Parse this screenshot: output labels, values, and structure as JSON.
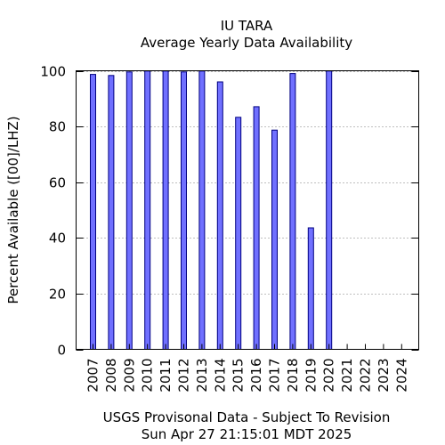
{
  "chart_data": {
    "type": "bar",
    "title": "IU TARA",
    "subtitle": "Average Yearly Data Availability",
    "ylabel": "Percent Available ([00]/LHZ)",
    "xlabel": "",
    "footer_line1": "USGS Provisonal Data - Subject To Revision",
    "footer_line2": "Sun Apr 27 21:15:01 MDT 2025",
    "ylim": [
      0,
      100
    ],
    "yticks": [
      0,
      20,
      40,
      60,
      80,
      100
    ],
    "grid": true,
    "legend": "none",
    "categories": [
      "2007",
      "2008",
      "2009",
      "2010",
      "2011",
      "2012",
      "2013",
      "2014",
      "2015",
      "2016",
      "2017",
      "2018",
      "2019",
      "2020",
      "2021",
      "2022",
      "2023",
      "2024"
    ],
    "values": [
      98.7,
      98.3,
      99.6,
      99.9,
      99.9,
      99.6,
      99.9,
      96.0,
      83.3,
      87.1,
      78.7,
      99.0,
      43.6,
      99.9,
      null,
      null,
      null,
      null
    ],
    "bar_fill": "#7070ff",
    "bar_stroke": "#000080",
    "grid_color": "#7f7f7f"
  }
}
